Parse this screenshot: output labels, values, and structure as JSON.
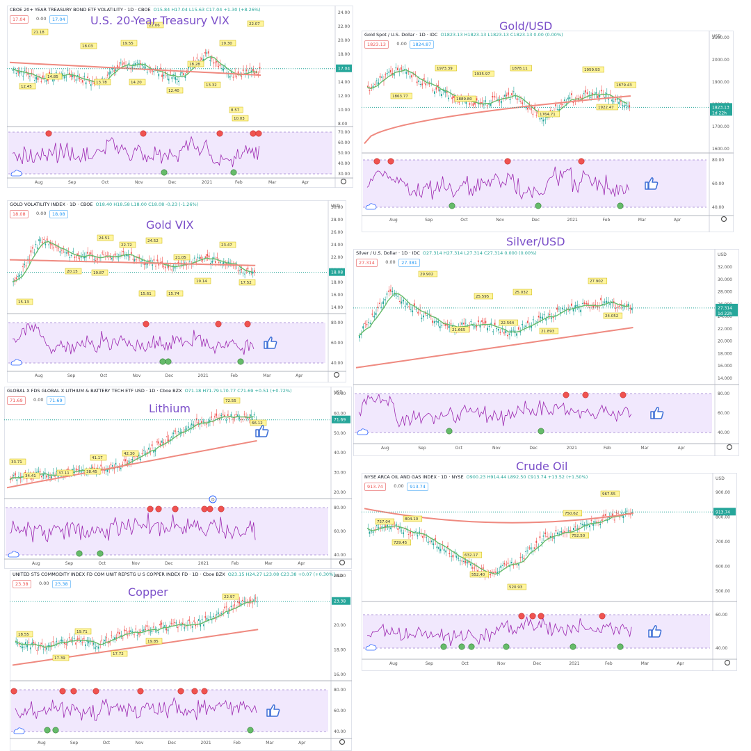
{
  "panels": [
    {
      "id": "vix20",
      "title": "U.S. 20-Year Treasury VIX",
      "header": "CBOE 20+ YEAR TREASURY BOND ETF VOLATILITY · 1D · CBOE",
      "ohlc": "O15.84 H17.04 L15.63 C17.04 +1.30 (+8.26%)",
      "price_left": "17.04",
      "price_mid": "0.00",
      "price_right": "17.04",
      "last": "17.04",
      "y_ticks": [
        "8.00",
        "10.00",
        "12.00",
        "14.00",
        "16.00",
        "18.00",
        "20.00",
        "22.00",
        "24.00"
      ],
      "osc_ticks": [
        "30.00",
        "40.00",
        "50.00",
        "60.00",
        "70.00"
      ],
      "x_ticks": [
        "Aug",
        "Sep",
        "Oct",
        "Nov",
        "Dec",
        "2021",
        "Feb",
        "Mar",
        "Apr"
      ],
      "price_labels": [
        "12.45",
        "21.18",
        "14.85",
        "18.03",
        "13.78",
        "19.55",
        "14.20",
        "22.06",
        "12.40",
        "18.28",
        "13.32",
        "19.30",
        "8.57",
        "22.07",
        "10.03"
      ],
      "colors": {
        "hl": "#ef5350",
        "ma": "#ef8a80",
        "ma2": "#66bb6a"
      }
    },
    {
      "id": "gold",
      "title": "Gold/USD",
      "header": "Gold Spot / U.S. Dollar · 1D · IDC",
      "ohlc": "O1823.13 H1823.13 L1823.13 C1823.13 0.00 (0.00%)",
      "price_left": "1823.13",
      "price_mid": "0.00",
      "price_right": "1824.87",
      "last": "1823.13",
      "last_sub": "1d 22h",
      "y_ticks": [
        "1600.00",
        "1700.00",
        "1800.00",
        "1900.00",
        "2000.00",
        "2100.00"
      ],
      "osc_ticks": [
        "40.00",
        "60.00",
        "80.00"
      ],
      "x_ticks": [
        "Aug",
        "Sep",
        "Oct",
        "Nov",
        "Dec",
        "2021",
        "Feb",
        "Mar",
        "Apr"
      ],
      "price_labels": [
        "1863.77",
        "1973.39",
        "1889.80",
        "1935.97",
        "1878.11",
        "1959.93",
        "1764.71",
        "1922.47",
        "1879.43"
      ],
      "axis_unit": "USD",
      "colors": {
        "hl": "#ef5350",
        "ma": "#ef8a80",
        "ma2": "#66bb6a"
      }
    },
    {
      "id": "goldvix",
      "title": "Gold VIX",
      "header": "GOLD VOLATILITY INDEX · 1D · CBOE",
      "ohlc": "O18.40 H18.58 L18.00 C18.08 -0.23 (-1.26%)",
      "price_left": "18.08",
      "price_mid": "0.00",
      "price_right": "18.08",
      "last": "18.08",
      "y_ticks": [
        "14.00",
        "16.00",
        "18.00",
        "20.00",
        "22.00",
        "24.00",
        "26.00",
        "28.00",
        "30.00"
      ],
      "osc_ticks": [
        "40.00",
        "60.00",
        "80.00"
      ],
      "x_ticks": [
        "Aug",
        "Sep",
        "Oct",
        "Nov",
        "Dec",
        "2021",
        "Feb",
        "Mar",
        "Apr"
      ],
      "price_labels": [
        "15.13",
        "20.15",
        "24.51",
        "19.87",
        "22.72",
        "24.52",
        "15.61",
        "21.05",
        "15.74",
        "19.14",
        "23.47",
        "17.52"
      ],
      "axis_unit": "USD",
      "colors": {
        "hl": "#ef5350",
        "ma": "#ef8a80",
        "ma2": "#66bb6a"
      }
    },
    {
      "id": "silver",
      "title": "Silver/USD",
      "header": "Silver / U.S. Dollar · 1D · IDC",
      "ohlc": "O27.314 H27.314 L27.314 C27.314 0.000 (0.00%)",
      "price_left": "27.314",
      "price_mid": "0.00",
      "price_right": "27.381",
      "last": "27.314",
      "last_sub": "1d 22h",
      "y_ticks": [
        "14.000",
        "16.000",
        "18.000",
        "20.000",
        "22.000",
        "24.000",
        "26.000",
        "28.000",
        "30.000",
        "32.000"
      ],
      "osc_ticks": [
        "40.00",
        "60.00",
        "80.00"
      ],
      "x_ticks": [
        "Aug",
        "Sep",
        "Oct",
        "Nov",
        "Dec",
        "2021",
        "Feb",
        "Mar",
        "Apr"
      ],
      "price_labels": [
        "29.902",
        "21.665",
        "25.595",
        "25.032",
        "22.564",
        "21.893",
        "27.902",
        "24.052"
      ],
      "axis_unit": "USD",
      "colors": {
        "hl": "#ef5350",
        "ma": "#ef8a80",
        "ma2": "#66bb6a"
      }
    },
    {
      "id": "lithium",
      "title": "Lithium",
      "header": "GLOBAL X FDS GLOBAL X LITHIUM & BATTERY TECH ETF USD · 1D · Cboe BZX",
      "ohlc": "O71.18 H71.79 L70.77 C71.69 +0.51 (+0.72%)",
      "price_left": "71.69",
      "price_mid": "0.00",
      "price_right": "71.69",
      "last": "71.69",
      "y_ticks": [
        "20.00",
        "30.00",
        "40.00",
        "50.00",
        "60.00",
        "70.00"
      ],
      "osc_ticks": [
        "40.00",
        "60.00",
        "80.00"
      ],
      "x_ticks": [
        "Aug",
        "Sep",
        "Oct",
        "Nov",
        "Dec",
        "2021",
        "Feb",
        "Mar",
        "Apr"
      ],
      "price_labels": [
        "33.71",
        "34.41",
        "37.11",
        "41.17",
        "38.45",
        "42.30",
        "72.55",
        "66.12"
      ],
      "axis_unit": "USD",
      "dividend_marker": "D",
      "colors": {
        "hl": "#ef5350",
        "ma": "#ef8a80",
        "ma2": "#66bb6a"
      }
    },
    {
      "id": "crude",
      "title": "Crude Oil",
      "header": "NYSE ARCA OIL AND GAS INDEX · 1D · NYSE",
      "ohlc": "O900.23 H914.44 L892.50 C913.74 +13.52 (+1.50%)",
      "price_left": "913.74",
      "price_mid": "0.00",
      "price_right": "913.74",
      "last": "913.74",
      "y_ticks": [
        "500.00",
        "600.00",
        "700.00",
        "800.00",
        "900.00"
      ],
      "osc_ticks": [
        "40.00",
        "60.00"
      ],
      "x_ticks": [
        "Aug",
        "Sep",
        "Oct",
        "Nov",
        "Dec",
        "2021",
        "Feb",
        "Mar",
        "Apr"
      ],
      "price_labels": [
        "757.04",
        "804.10",
        "729.45",
        "632.17",
        "552.40",
        "520.93",
        "750.62",
        "752.50",
        "967.55"
      ],
      "axis_unit": "USD",
      "colors": {
        "hl": "#ef5350",
        "ma": "#ef8a80",
        "ma2": "#66bb6a"
      }
    },
    {
      "id": "copper",
      "title": "Copper",
      "header": "UNITED STS COMMODITY INDEX FD COM UNIT REPSTG U S COPPER INDEX FD · 1D · Cboe BZX",
      "ohlc": "O23.15 H24.27 L23.08 C23.38 +0.07 (+0.30%)",
      "price_left": "23.38",
      "price_mid": "0.00",
      "price_right": "23.38",
      "last": "23.38",
      "y_ticks": [
        "16.00",
        "18.00",
        "20.00",
        "22.00",
        "24.00"
      ],
      "osc_ticks": [
        "40.00",
        "60.00",
        "80.00"
      ],
      "x_ticks": [
        "Aug",
        "Sep",
        "Oct",
        "Nov",
        "Dec",
        "2021",
        "Feb",
        "Mar",
        "Apr"
      ],
      "price_labels": [
        "18.55",
        "17.39",
        "19.71",
        "17.72",
        "19.85",
        "22.97"
      ],
      "axis_unit": "USD",
      "colors": {
        "hl": "#ef5350",
        "ma": "#ef8a80",
        "ma2": "#66bb6a"
      }
    }
  ],
  "chart_data": [
    {
      "type": "line",
      "title": "U.S. 20-Year Treasury VIX",
      "x": [
        "Aug",
        "Sep",
        "Oct",
        "Nov",
        "Dec",
        "2021",
        "Feb"
      ],
      "series": [
        {
          "values": [
            15.5,
            17.0,
            16.5,
            17.5,
            15.0,
            14.5,
            17.04
          ]
        }
      ],
      "ylim": [
        8,
        24
      ]
    },
    {
      "type": "line",
      "title": "Gold/USD",
      "x": [
        "Aug",
        "Sep",
        "Oct",
        "Nov",
        "Dec",
        "2021",
        "Feb"
      ],
      "series": [
        {
          "values": [
            1970,
            1950,
            1900,
            1880,
            1780,
            1880,
            1823.13
          ]
        }
      ],
      "ylim": [
        1600,
        2100
      ]
    },
    {
      "type": "line",
      "title": "Gold VIX",
      "x": [
        "Aug",
        "Sep",
        "Oct",
        "Nov",
        "Dec",
        "2021",
        "Feb"
      ],
      "series": [
        {
          "values": [
            24,
            22,
            21,
            20,
            19.5,
            20,
            18.08
          ]
        }
      ],
      "ylim": [
        14,
        30
      ]
    },
    {
      "type": "line",
      "title": "Silver/USD",
      "x": [
        "Aug",
        "Sep",
        "Oct",
        "Nov",
        "Dec",
        "2021",
        "Feb"
      ],
      "series": [
        {
          "values": [
            27,
            25,
            23.5,
            24,
            24,
            26,
            27.314
          ]
        }
      ],
      "ylim": [
        14,
        32
      ]
    },
    {
      "type": "line",
      "title": "Lithium",
      "x": [
        "Aug",
        "Sep",
        "Oct",
        "Nov",
        "Dec",
        "2021",
        "Feb"
      ],
      "series": [
        {
          "values": [
            36,
            39,
            41,
            44,
            55,
            68,
            71.69
          ]
        }
      ],
      "ylim": [
        20,
        75
      ]
    },
    {
      "type": "line",
      "title": "Crude Oil",
      "x": [
        "Aug",
        "Sep",
        "Oct",
        "Nov",
        "Dec",
        "2021",
        "Feb"
      ],
      "series": [
        {
          "values": [
            760,
            720,
            640,
            560,
            770,
            840,
            913.74
          ]
        }
      ],
      "ylim": [
        500,
        960
      ]
    },
    {
      "type": "line",
      "title": "Copper",
      "x": [
        "Aug",
        "Sep",
        "Oct",
        "Nov",
        "Dec",
        "2021",
        "Feb"
      ],
      "series": [
        {
          "values": [
            18.5,
            19,
            18.5,
            19.5,
            20.5,
            22.5,
            23.38
          ]
        }
      ],
      "ylim": [
        16,
        25
      ]
    }
  ]
}
